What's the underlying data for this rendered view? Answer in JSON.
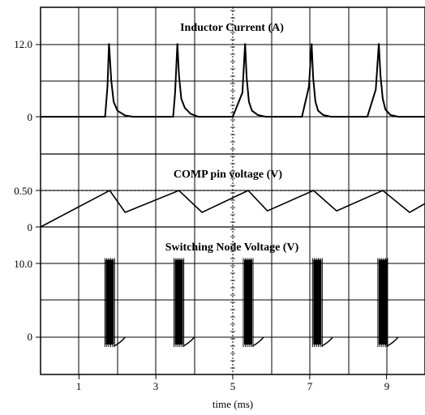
{
  "chart_data": [
    {
      "type": "line",
      "title": "Inductor Current (A)",
      "y_ticks": [
        "12.0",
        "0"
      ],
      "ylim": [
        -5,
        18
      ],
      "series": [
        {
          "values_description_skip": null,
          "x": [
            0,
            1.68,
            1.74,
            1.78,
            1.84,
            1.9,
            2.0,
            2.2,
            2.4,
            3.45,
            3.5,
            3.56,
            3.6,
            3.66,
            3.75,
            3.9,
            4.1,
            5.0,
            5.25,
            5.32,
            5.36,
            5.42,
            5.5,
            5.65,
            5.85,
            6.8,
            6.98,
            7.05,
            7.09,
            7.15,
            7.22,
            7.35,
            7.55,
            8.5,
            8.72,
            8.8,
            8.84,
            8.9,
            8.97,
            9.1,
            9.3,
            10
          ],
          "y": [
            0,
            0,
            5,
            12.2,
            6,
            2.5,
            1,
            0.2,
            0,
            0,
            4,
            12.2,
            7,
            3,
            1.5,
            0.5,
            0,
            0,
            4,
            12.2,
            6.5,
            2.5,
            1,
            0.3,
            0,
            0,
            5,
            12.2,
            6.5,
            2.5,
            1,
            0.3,
            0,
            0,
            4.5,
            12.2,
            7,
            3,
            1.2,
            0.3,
            0,
            0
          ]
        }
      ]
    },
    {
      "type": "line",
      "title": "COMP pin voltage (V)",
      "y_ticks": [
        "0.50",
        "0"
      ],
      "ylim": [
        -0.1,
        0.95
      ],
      "reference_line": 0.5,
      "series": [
        {
          "x": [
            0,
            1.8,
            2.2,
            3.6,
            4.2,
            5.4,
            5.9,
            7.1,
            7.7,
            8.9,
            9.6,
            10
          ],
          "y": [
            0,
            0.5,
            0.2,
            0.5,
            0.2,
            0.5,
            0.22,
            0.5,
            0.22,
            0.5,
            0.2,
            0.32
          ]
        }
      ]
    },
    {
      "type": "line",
      "title": "Switching Node Voltage (V)",
      "y_ticks": [
        "10.0",
        "0"
      ],
      "ylim": [
        -5,
        15
      ],
      "burst_times": [
        1.8,
        3.6,
        5.4,
        7.2,
        8.9
      ],
      "burst_high": 10.5,
      "burst_low": -1
    }
  ],
  "x_axis": {
    "label": "time (ms)",
    "ticks": [
      "1",
      "3",
      "5",
      "7",
      "9"
    ],
    "tick_values": [
      1,
      3,
      5,
      7,
      9
    ],
    "xlim": [
      0,
      10
    ]
  }
}
